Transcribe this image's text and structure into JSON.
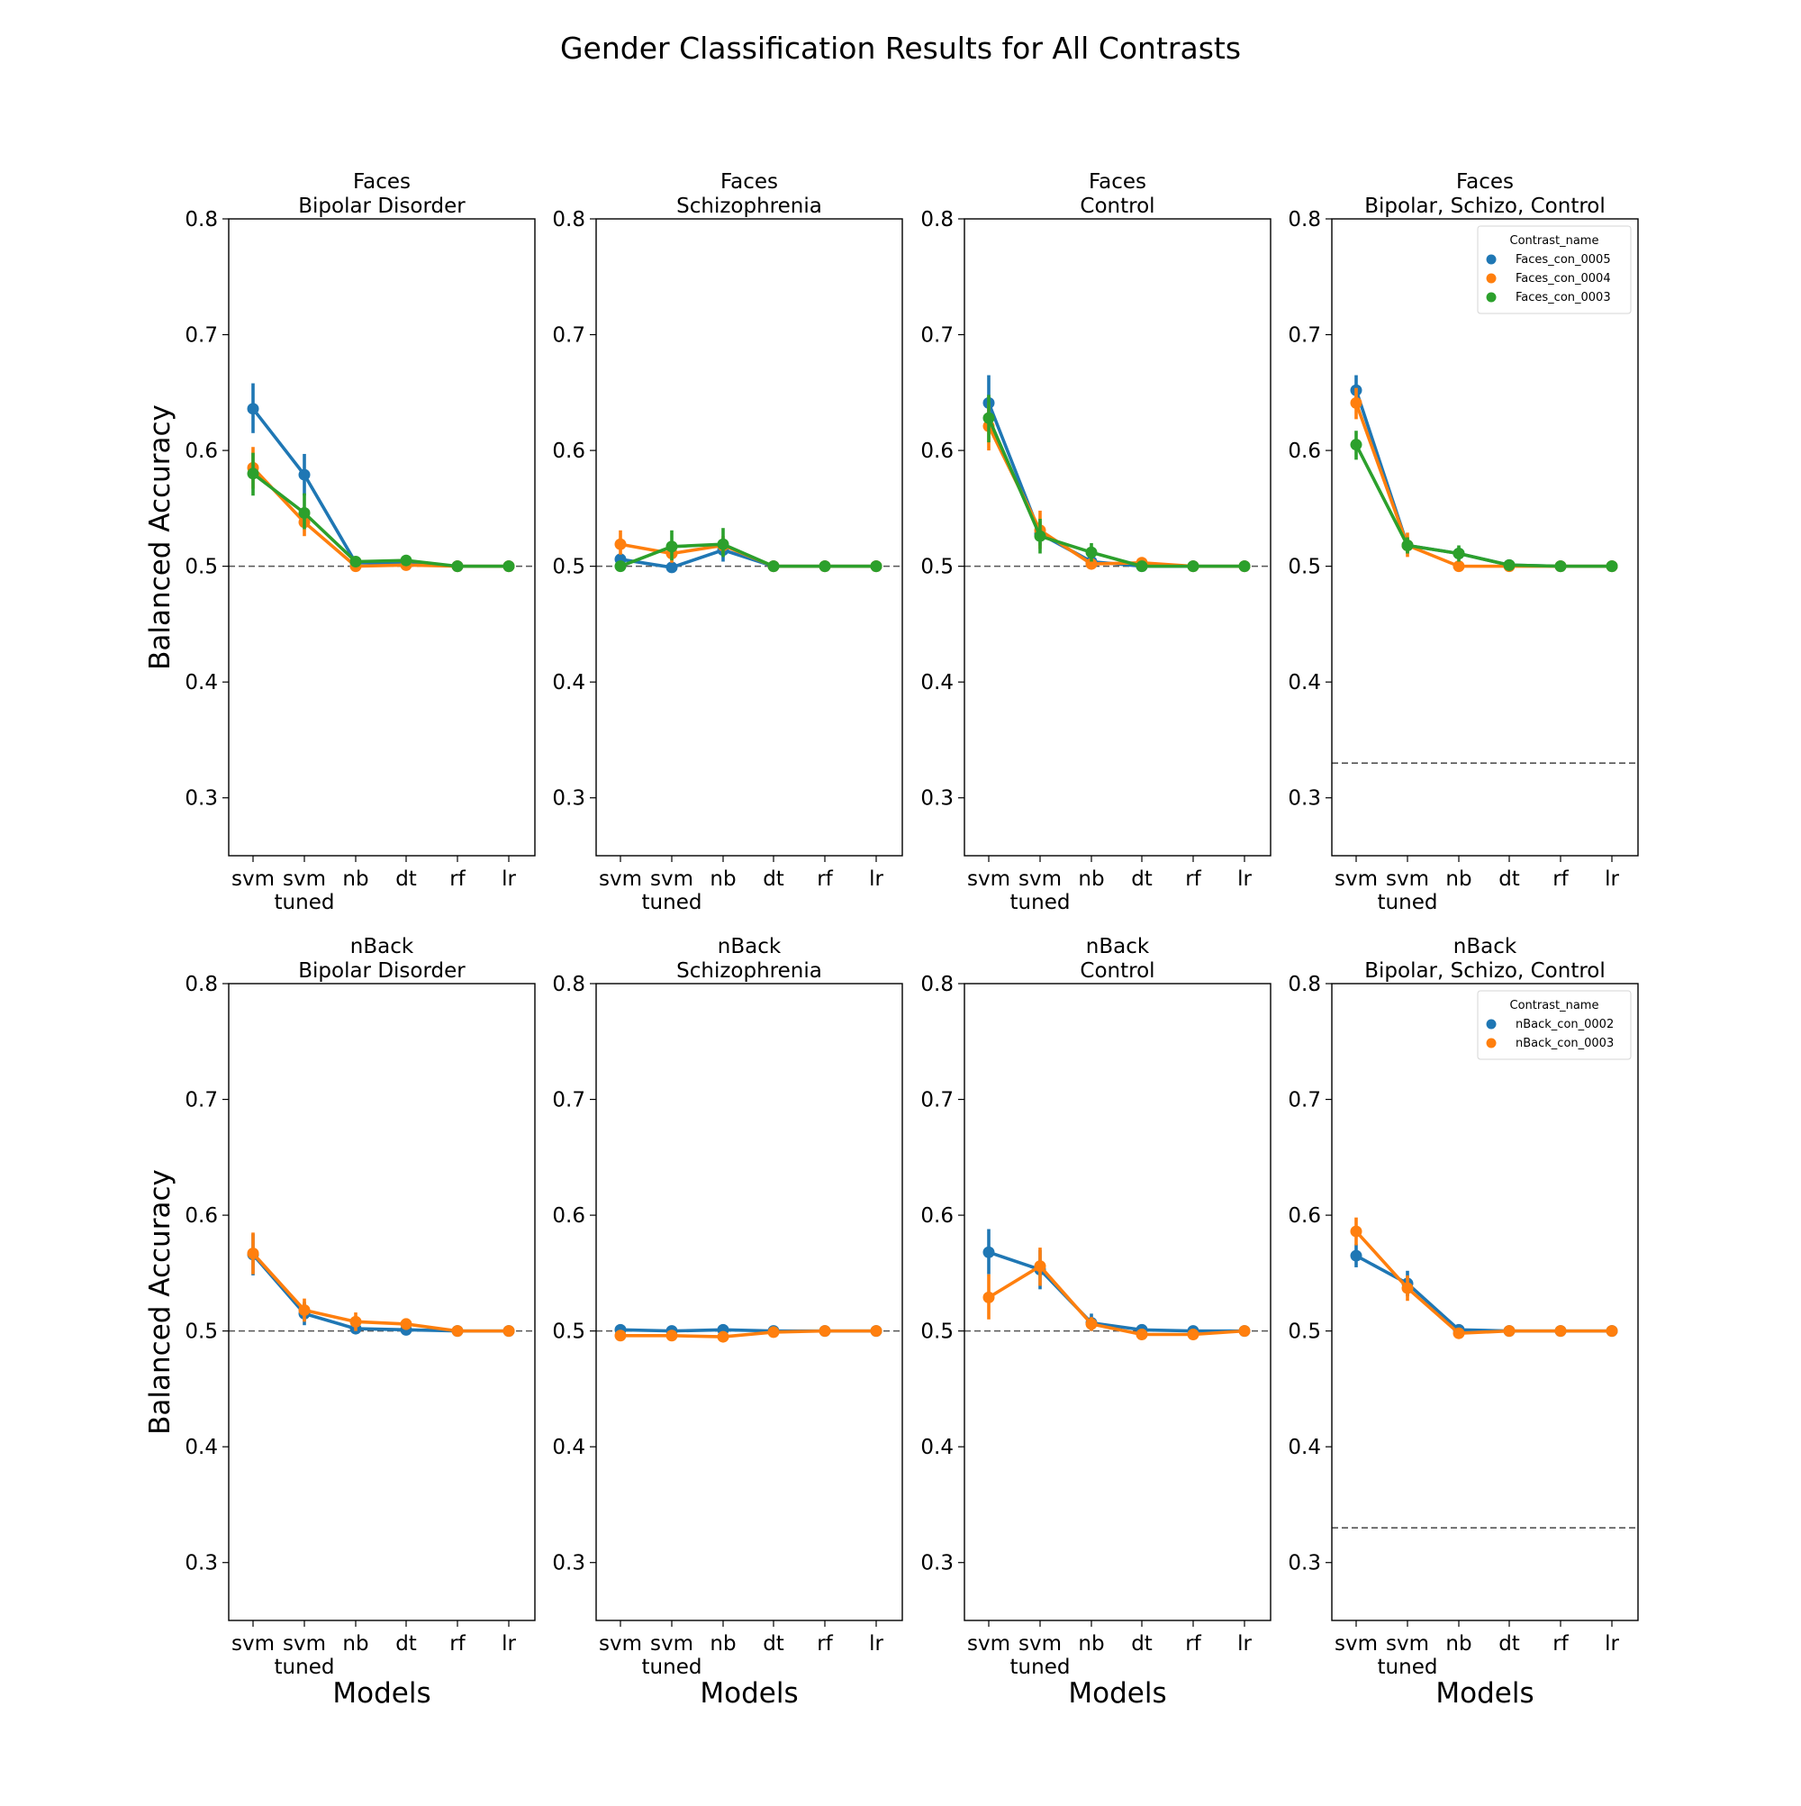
{
  "figure_title": "Gender Classification Results for All Contrasts",
  "colors": {
    "Faces_con_0005": "#1f77b4",
    "Faces_con_0004": "#ff7f0e",
    "Faces_con_0003": "#2ca02c",
    "nBack_con_0002": "#1f77b4",
    "nBack_con_0003": "#ff7f0e",
    "chance_line": "#555555"
  },
  "chart_data": [
    {
      "type": "line",
      "title": "Faces\nBipolar Disorder",
      "categories": [
        "svm",
        "svm\ntuned",
        "nb",
        "dt",
        "rf",
        "lr"
      ],
      "xlabel": "",
      "ylabel": "Balanced Accuracy",
      "ylim": [
        0.25,
        0.8
      ],
      "yticks": [
        0.3,
        0.4,
        0.5,
        0.6,
        0.7,
        0.8
      ],
      "chance_level": 0.5,
      "legend": null,
      "series": [
        {
          "name": "Faces_con_0005",
          "values": [
            0.636,
            0.579,
            0.503,
            0.503,
            0.5,
            0.5
          ],
          "err_low": [
            0.615,
            0.561,
            0.501,
            0.501,
            0.5,
            0.5
          ],
          "err_high": [
            0.658,
            0.597,
            0.506,
            0.505,
            0.5,
            0.5
          ]
        },
        {
          "name": "Faces_con_0004",
          "values": [
            0.585,
            0.538,
            0.5,
            0.501,
            0.5,
            0.5
          ],
          "err_low": [
            0.567,
            0.526,
            0.5,
            0.5,
            0.5,
            0.5
          ],
          "err_high": [
            0.603,
            0.551,
            0.5,
            0.502,
            0.5,
            0.5
          ]
        },
        {
          "name": "Faces_con_0003",
          "values": [
            0.58,
            0.546,
            0.504,
            0.505,
            0.5,
            0.5
          ],
          "err_low": [
            0.561,
            0.532,
            0.502,
            0.501,
            0.5,
            0.5
          ],
          "err_high": [
            0.598,
            0.563,
            0.506,
            0.509,
            0.5,
            0.5
          ]
        }
      ]
    },
    {
      "type": "line",
      "title": "Faces\nSchizophrenia",
      "categories": [
        "svm",
        "svm\ntuned",
        "nb",
        "dt",
        "rf",
        "lr"
      ],
      "xlabel": "",
      "ylabel": "",
      "ylim": [
        0.25,
        0.8
      ],
      "yticks": [
        0.3,
        0.4,
        0.5,
        0.6,
        0.7,
        0.8
      ],
      "chance_level": 0.5,
      "legend": null,
      "series": [
        {
          "name": "Faces_con_0005",
          "values": [
            0.506,
            0.499,
            0.514,
            0.5,
            0.5,
            0.5
          ],
          "err_low": [
            0.502,
            0.497,
            0.504,
            0.5,
            0.5,
            0.5
          ],
          "err_high": [
            0.511,
            0.501,
            0.523,
            0.5,
            0.5,
            0.5
          ]
        },
        {
          "name": "Faces_con_0004",
          "values": [
            0.519,
            0.511,
            0.518,
            0.5,
            0.5,
            0.5
          ],
          "err_low": [
            0.51,
            0.503,
            0.511,
            0.5,
            0.5,
            0.5
          ],
          "err_high": [
            0.531,
            0.519,
            0.526,
            0.5,
            0.5,
            0.5
          ]
        },
        {
          "name": "Faces_con_0003",
          "values": [
            0.5,
            0.517,
            0.519,
            0.5,
            0.5,
            0.5
          ],
          "err_low": [
            0.499,
            0.505,
            0.508,
            0.5,
            0.5,
            0.5
          ],
          "err_high": [
            0.501,
            0.531,
            0.533,
            0.5,
            0.5,
            0.5
          ]
        }
      ]
    },
    {
      "type": "line",
      "title": "Faces\nControl",
      "categories": [
        "svm",
        "svm\ntuned",
        "nb",
        "dt",
        "rf",
        "lr"
      ],
      "xlabel": "",
      "ylabel": "",
      "ylim": [
        0.25,
        0.8
      ],
      "yticks": [
        0.3,
        0.4,
        0.5,
        0.6,
        0.7,
        0.8
      ],
      "chance_level": 0.5,
      "legend": null,
      "series": [
        {
          "name": "Faces_con_0005",
          "values": [
            0.641,
            0.528,
            0.504,
            0.5,
            0.5,
            0.5
          ],
          "err_low": [
            0.618,
            0.518,
            0.501,
            0.5,
            0.5,
            0.5
          ],
          "err_high": [
            0.665,
            0.539,
            0.507,
            0.5,
            0.5,
            0.5
          ]
        },
        {
          "name": "Faces_con_0004",
          "values": [
            0.621,
            0.531,
            0.502,
            0.503,
            0.5,
            0.5
          ],
          "err_low": [
            0.6,
            0.515,
            0.5,
            0.501,
            0.5,
            0.5
          ],
          "err_high": [
            0.641,
            0.548,
            0.505,
            0.505,
            0.5,
            0.5
          ]
        },
        {
          "name": "Faces_con_0003",
          "values": [
            0.628,
            0.526,
            0.512,
            0.5,
            0.5,
            0.5
          ],
          "err_low": [
            0.607,
            0.511,
            0.504,
            0.5,
            0.5,
            0.5
          ],
          "err_high": [
            0.648,
            0.541,
            0.52,
            0.5,
            0.5,
            0.5
          ]
        }
      ]
    },
    {
      "type": "line",
      "title": "Faces\nBipolar, Schizo, Control",
      "categories": [
        "svm",
        "svm\ntuned",
        "nb",
        "dt",
        "rf",
        "lr"
      ],
      "xlabel": "",
      "ylabel": "",
      "ylim": [
        0.25,
        0.8
      ],
      "yticks": [
        0.3,
        0.4,
        0.5,
        0.6,
        0.7,
        0.8
      ],
      "chance_level": 0.33,
      "legend": {
        "title": "Contrast_name",
        "position": "top-right",
        "entries": [
          "Faces_con_0005",
          "Faces_con_0004",
          "Faces_con_0003"
        ]
      },
      "series": [
        {
          "name": "Faces_con_0005",
          "values": [
            0.652,
            0.518,
            0.511,
            0.501,
            0.5,
            0.5
          ],
          "err_low": [
            0.64,
            0.511,
            0.506,
            0.5,
            0.5,
            0.5
          ],
          "err_high": [
            0.665,
            0.525,
            0.516,
            0.502,
            0.5,
            0.5
          ]
        },
        {
          "name": "Faces_con_0004",
          "values": [
            0.641,
            0.518,
            0.5,
            0.5,
            0.5,
            0.5
          ],
          "err_low": [
            0.627,
            0.508,
            0.499,
            0.5,
            0.5,
            0.5
          ],
          "err_high": [
            0.654,
            0.529,
            0.501,
            0.5,
            0.5,
            0.5
          ]
        },
        {
          "name": "Faces_con_0003",
          "values": [
            0.605,
            0.518,
            0.511,
            0.501,
            0.5,
            0.5
          ],
          "err_low": [
            0.592,
            0.511,
            0.504,
            0.5,
            0.5,
            0.5
          ],
          "err_high": [
            0.617,
            0.525,
            0.518,
            0.502,
            0.5,
            0.5
          ]
        }
      ]
    },
    {
      "type": "line",
      "title": "nBack\nBipolar Disorder",
      "categories": [
        "svm",
        "svm\ntuned",
        "nb",
        "dt",
        "rf",
        "lr"
      ],
      "xlabel": "Models",
      "ylabel": "Balanced Accuracy",
      "ylim": [
        0.25,
        0.8
      ],
      "yticks": [
        0.3,
        0.4,
        0.5,
        0.6,
        0.7,
        0.8
      ],
      "chance_level": 0.5,
      "legend": null,
      "series": [
        {
          "name": "nBack_con_0002",
          "values": [
            0.566,
            0.515,
            0.502,
            0.501,
            0.5,
            0.5
          ],
          "err_low": [
            0.548,
            0.505,
            0.5,
            0.5,
            0.5,
            0.5
          ],
          "err_high": [
            0.584,
            0.525,
            0.504,
            0.502,
            0.5,
            0.5
          ]
        },
        {
          "name": "nBack_con_0003",
          "values": [
            0.567,
            0.518,
            0.508,
            0.506,
            0.5,
            0.5
          ],
          "err_low": [
            0.549,
            0.508,
            0.5,
            0.501,
            0.5,
            0.5
          ],
          "err_high": [
            0.585,
            0.528,
            0.516,
            0.511,
            0.5,
            0.5
          ]
        }
      ]
    },
    {
      "type": "line",
      "title": "nBack\nSchizophrenia",
      "categories": [
        "svm",
        "svm\ntuned",
        "nb",
        "dt",
        "rf",
        "lr"
      ],
      "xlabel": "Models",
      "ylabel": "",
      "ylim": [
        0.25,
        0.8
      ],
      "yticks": [
        0.3,
        0.4,
        0.5,
        0.6,
        0.7,
        0.8
      ],
      "chance_level": 0.5,
      "legend": null,
      "series": [
        {
          "name": "nBack_con_0002",
          "values": [
            0.501,
            0.5,
            0.501,
            0.5,
            0.5,
            0.5
          ],
          "err_low": [
            0.499,
            0.499,
            0.5,
            0.5,
            0.5,
            0.5
          ],
          "err_high": [
            0.502,
            0.501,
            0.502,
            0.5,
            0.5,
            0.5
          ]
        },
        {
          "name": "nBack_con_0003",
          "values": [
            0.496,
            0.496,
            0.495,
            0.499,
            0.5,
            0.5
          ],
          "err_low": [
            0.494,
            0.494,
            0.491,
            0.498,
            0.499,
            0.5
          ],
          "err_high": [
            0.498,
            0.498,
            0.499,
            0.5,
            0.501,
            0.5
          ]
        }
      ]
    },
    {
      "type": "line",
      "title": "nBack\nControl",
      "categories": [
        "svm",
        "svm\ntuned",
        "nb",
        "dt",
        "rf",
        "lr"
      ],
      "xlabel": "Models",
      "ylabel": "",
      "ylim": [
        0.25,
        0.8
      ],
      "yticks": [
        0.3,
        0.4,
        0.5,
        0.6,
        0.7,
        0.8
      ],
      "chance_level": 0.5,
      "legend": null,
      "series": [
        {
          "name": "nBack_con_0002",
          "values": [
            0.568,
            0.553,
            0.507,
            0.501,
            0.5,
            0.5
          ],
          "err_low": [
            0.549,
            0.536,
            0.5,
            0.5,
            0.5,
            0.5
          ],
          "err_high": [
            0.588,
            0.57,
            0.515,
            0.502,
            0.5,
            0.5
          ]
        },
        {
          "name": "nBack_con_0003",
          "values": [
            0.529,
            0.556,
            0.506,
            0.497,
            0.497,
            0.5
          ],
          "err_low": [
            0.51,
            0.539,
            0.5,
            0.495,
            0.495,
            0.5
          ],
          "err_high": [
            0.549,
            0.572,
            0.512,
            0.499,
            0.499,
            0.5
          ]
        }
      ]
    },
    {
      "type": "line",
      "title": "nBack\nBipolar, Schizo, Control",
      "categories": [
        "svm",
        "svm\ntuned",
        "nb",
        "dt",
        "rf",
        "lr"
      ],
      "xlabel": "Models",
      "ylabel": "",
      "ylim": [
        0.25,
        0.8
      ],
      "yticks": [
        0.3,
        0.4,
        0.5,
        0.6,
        0.7,
        0.8
      ],
      "chance_level": 0.33,
      "legend": {
        "title": "Contrast_name",
        "position": "top-right",
        "entries": [
          "nBack_con_0002",
          "nBack_con_0003"
        ]
      },
      "series": [
        {
          "name": "nBack_con_0002",
          "values": [
            0.565,
            0.541,
            0.501,
            0.5,
            0.5,
            0.5
          ],
          "err_low": [
            0.555,
            0.53,
            0.499,
            0.5,
            0.5,
            0.5
          ],
          "err_high": [
            0.575,
            0.552,
            0.503,
            0.5,
            0.5,
            0.5
          ]
        },
        {
          "name": "nBack_con_0003",
          "values": [
            0.586,
            0.537,
            0.498,
            0.5,
            0.5,
            0.5
          ],
          "err_low": [
            0.574,
            0.526,
            0.497,
            0.5,
            0.5,
            0.5
          ],
          "err_high": [
            0.598,
            0.548,
            0.499,
            0.5,
            0.5,
            0.5
          ]
        }
      ]
    }
  ]
}
